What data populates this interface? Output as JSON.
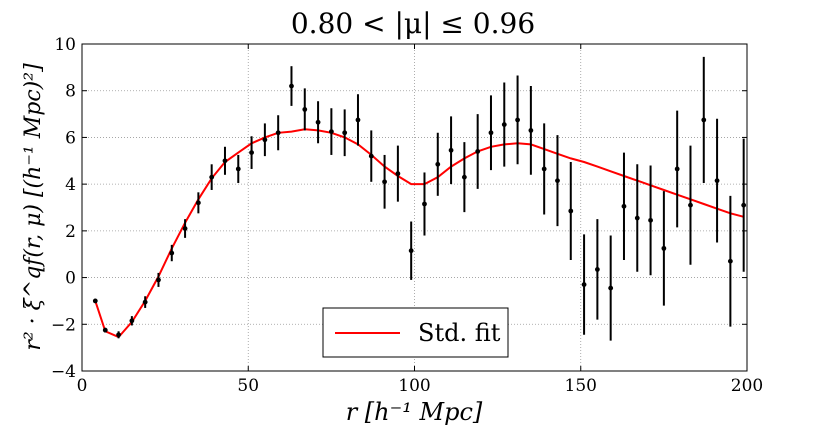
{
  "chart_data": {
    "type": "scatter",
    "title": "0.80 < |μ| ≤ 0.96",
    "xlabel": "r [h⁻¹ Mpc]",
    "ylabel": "r² · ξ^qf(r, μ) [(h⁻¹ Mpc)²]",
    "xlim": [
      0,
      200
    ],
    "ylim": [
      -4,
      10
    ],
    "grid": true,
    "x_ticks": [
      "0",
      "50",
      "100",
      "150",
      "200"
    ],
    "y_ticks": [
      "−4",
      "−2",
      "0",
      "2",
      "4",
      "6",
      "8",
      "10"
    ],
    "legend": {
      "position": "bottom-center",
      "entries": [
        "Std. fit"
      ]
    },
    "series": [
      {
        "name": "Data",
        "kind": "errorbar",
        "color": "#000000",
        "points": [
          {
            "x": 4,
            "y": -1.0,
            "err": 0.05
          },
          {
            "x": 7,
            "y": -2.25,
            "err": 0.1
          },
          {
            "x": 11,
            "y": -2.45,
            "err": 0.15
          },
          {
            "x": 15,
            "y": -1.85,
            "err": 0.2
          },
          {
            "x": 19,
            "y": -1.05,
            "err": 0.25
          },
          {
            "x": 23,
            "y": -0.1,
            "err": 0.3
          },
          {
            "x": 27,
            "y": 1.05,
            "err": 0.35
          },
          {
            "x": 31,
            "y": 2.1,
            "err": 0.4
          },
          {
            "x": 35,
            "y": 3.2,
            "err": 0.45
          },
          {
            "x": 39,
            "y": 4.3,
            "err": 0.55
          },
          {
            "x": 43,
            "y": 5.0,
            "err": 0.6
          },
          {
            "x": 47,
            "y": 4.65,
            "err": 0.6
          },
          {
            "x": 51,
            "y": 5.35,
            "err": 0.7
          },
          {
            "x": 55,
            "y": 5.9,
            "err": 0.7
          },
          {
            "x": 59,
            "y": 6.2,
            "err": 0.75
          },
          {
            "x": 63,
            "y": 8.2,
            "err": 0.85
          },
          {
            "x": 67,
            "y": 7.2,
            "err": 0.9
          },
          {
            "x": 71,
            "y": 6.65,
            "err": 0.9
          },
          {
            "x": 75,
            "y": 6.25,
            "err": 1.0
          },
          {
            "x": 79,
            "y": 6.2,
            "err": 1.0
          },
          {
            "x": 83,
            "y": 6.75,
            "err": 1.1
          },
          {
            "x": 87,
            "y": 5.2,
            "err": 1.1
          },
          {
            "x": 91,
            "y": 4.1,
            "err": 1.15
          },
          {
            "x": 95,
            "y": 4.45,
            "err": 1.2
          },
          {
            "x": 99,
            "y": 1.15,
            "err": 1.25
          },
          {
            "x": 103,
            "y": 3.15,
            "err": 1.35
          },
          {
            "x": 107,
            "y": 4.85,
            "err": 1.35
          },
          {
            "x": 111,
            "y": 5.45,
            "err": 1.45
          },
          {
            "x": 115,
            "y": 4.3,
            "err": 1.5
          },
          {
            "x": 119,
            "y": 5.4,
            "err": 1.6
          },
          {
            "x": 123,
            "y": 6.2,
            "err": 1.6
          },
          {
            "x": 127,
            "y": 6.55,
            "err": 1.8
          },
          {
            "x": 131,
            "y": 6.75,
            "err": 1.9
          },
          {
            "x": 135,
            "y": 6.3,
            "err": 1.9
          },
          {
            "x": 139,
            "y": 4.65,
            "err": 1.95
          },
          {
            "x": 143,
            "y": 4.15,
            "err": 1.95
          },
          {
            "x": 147,
            "y": 2.85,
            "err": 2.1
          },
          {
            "x": 151,
            "y": -0.3,
            "err": 2.15
          },
          {
            "x": 155,
            "y": 0.35,
            "err": 2.15
          },
          {
            "x": 159,
            "y": -0.45,
            "err": 2.25
          },
          {
            "x": 163,
            "y": 3.05,
            "err": 2.3
          },
          {
            "x": 167,
            "y": 2.55,
            "err": 2.3
          },
          {
            "x": 171,
            "y": 2.45,
            "err": 2.35
          },
          {
            "x": 175,
            "y": 1.25,
            "err": 2.45
          },
          {
            "x": 179,
            "y": 4.65,
            "err": 2.5
          },
          {
            "x": 183,
            "y": 3.1,
            "err": 2.55
          },
          {
            "x": 187,
            "y": 6.75,
            "err": 2.7
          },
          {
            "x": 191,
            "y": 4.15,
            "err": 2.65
          },
          {
            "x": 195,
            "y": 0.7,
            "err": 2.8
          },
          {
            "x": 199,
            "y": 3.1,
            "err": 2.85
          }
        ]
      },
      {
        "name": "Std. fit",
        "kind": "line",
        "color": "#ff0000",
        "x": [
          4,
          7,
          11,
          15,
          19,
          23,
          27,
          31,
          35,
          39,
          43,
          47,
          51,
          55,
          59,
          63,
          67,
          71,
          75,
          79,
          83,
          87,
          91,
          95,
          99,
          103,
          107,
          111,
          115,
          119,
          123,
          127,
          131,
          135,
          139,
          143,
          147,
          151,
          155,
          159,
          163,
          167,
          171,
          175,
          179,
          183,
          187,
          191,
          195,
          199
        ],
        "y": [
          -1.0,
          -2.3,
          -2.55,
          -1.9,
          -1.0,
          0.05,
          1.25,
          2.35,
          3.35,
          4.25,
          4.95,
          5.35,
          5.75,
          6.0,
          6.2,
          6.25,
          6.35,
          6.3,
          6.2,
          6.0,
          5.7,
          5.25,
          4.75,
          4.35,
          4.0,
          4.0,
          4.3,
          4.75,
          5.1,
          5.4,
          5.6,
          5.7,
          5.75,
          5.7,
          5.5,
          5.3,
          5.1,
          4.95,
          4.75,
          4.55,
          4.35,
          4.15,
          3.95,
          3.75,
          3.55,
          3.35,
          3.15,
          2.95,
          2.75,
          2.6
        ]
      }
    ]
  }
}
